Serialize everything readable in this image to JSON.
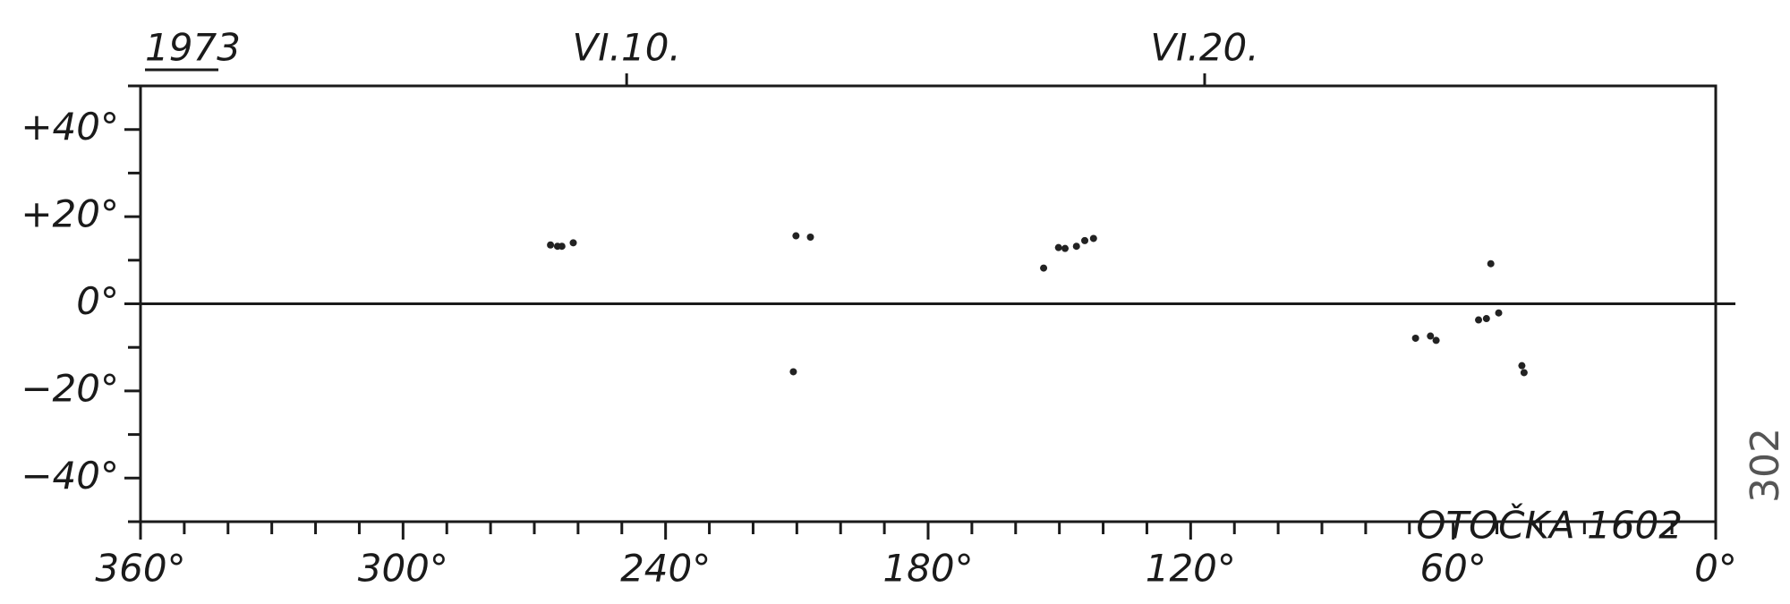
{
  "chart_data": {
    "type": "scatter",
    "year_label": "1973",
    "annotation": "OTOČKA 1602",
    "page_number": "302",
    "x": [
      266.3,
      264.7,
      263.7,
      261.1,
      210.2,
      206.9,
      210.8,
      153.6,
      150.2,
      148.7,
      146.1,
      144.2,
      142.2,
      68.6,
      65.2,
      63.9,
      54.2,
      52.4,
      49.6,
      51.4,
      44.3,
      43.8
    ],
    "values": [
      13.5,
      13.2,
      13.2,
      14.0,
      15.6,
      15.3,
      -15.6,
      8.2,
      12.9,
      12.7,
      13.2,
      14.5,
      15.0,
      -7.9,
      -7.4,
      -8.4,
      -3.7,
      -3.4,
      -2.1,
      9.2,
      -14.2,
      -15.8
    ],
    "color": "#222222",
    "xlim": [
      360,
      0
    ],
    "ylim": [
      -50,
      50
    ],
    "xticks": [
      {
        "value": 360,
        "label": "360°"
      },
      {
        "value": 300,
        "label": "300°"
      },
      {
        "value": 240,
        "label": "240°"
      },
      {
        "value": 180,
        "label": "180°"
      },
      {
        "value": 120,
        "label": "120°"
      },
      {
        "value": 60,
        "label": "60°"
      },
      {
        "value": 0,
        "label": "0°"
      }
    ],
    "xminorticks": [
      350,
      340,
      330,
      320,
      310,
      290,
      280,
      270,
      260,
      250,
      230,
      220,
      210,
      200,
      190,
      170,
      160,
      150,
      140,
      130,
      110,
      100,
      90,
      80,
      70,
      50,
      40,
      30,
      20,
      10
    ],
    "yticks": [
      {
        "value": 40,
        "label": "+40°"
      },
      {
        "value": 20,
        "label": "+20°"
      },
      {
        "value": 0,
        "label": "0°"
      },
      {
        "value": -20,
        "label": "−20°"
      },
      {
        "value": -40,
        "label": "−40°"
      }
    ],
    "yminorticks": [
      50,
      30,
      10,
      -10,
      -30,
      -50
    ],
    "top_ticks": [
      {
        "value": 248.9,
        "label": "VI.10."
      },
      {
        "value": 116.8,
        "label": "VI.20."
      }
    ],
    "zero_line": true
  }
}
